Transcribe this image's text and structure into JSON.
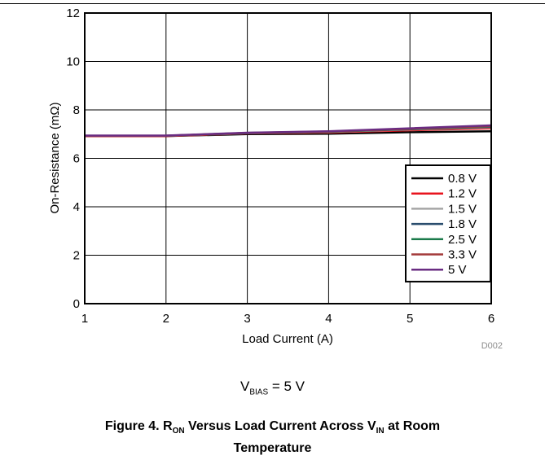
{
  "chart_data": {
    "type": "line",
    "title": "",
    "xlabel": "Load Current (A)",
    "ylabel": "On-Resistance (mΩ)",
    "xlim": [
      1,
      6
    ],
    "ylim": [
      0,
      12
    ],
    "x_ticks": [
      "1",
      "2",
      "3",
      "4",
      "5",
      "6"
    ],
    "y_ticks": [
      "0",
      "2",
      "4",
      "6",
      "8",
      "10",
      "12"
    ],
    "grid": true,
    "legend_position": "bottom-right",
    "x": [
      1,
      2,
      3,
      4,
      5,
      6
    ],
    "series": [
      {
        "name": "0.8 V",
        "color": "#000000",
        "values": [
          6.92,
          6.92,
          7.0,
          7.02,
          7.08,
          7.12
        ]
      },
      {
        "name": "1.2 V",
        "color": "#e8141e",
        "values": [
          6.92,
          6.92,
          7.03,
          7.07,
          7.16,
          7.24
        ]
      },
      {
        "name": "1.5 V",
        "color": "#a6a6a6",
        "values": [
          6.93,
          6.93,
          7.04,
          7.09,
          7.19,
          7.28
        ]
      },
      {
        "name": "1.8 V",
        "color": "#2a4d6e",
        "values": [
          6.93,
          6.93,
          7.04,
          7.1,
          7.2,
          7.3
        ]
      },
      {
        "name": "2.5 V",
        "color": "#1a7a4a",
        "values": [
          6.93,
          6.93,
          7.05,
          7.1,
          7.21,
          7.32
        ]
      },
      {
        "name": "3.3 V",
        "color": "#a33a3a",
        "values": [
          6.93,
          6.93,
          7.05,
          7.11,
          7.22,
          7.33
        ]
      },
      {
        "name": "5 V",
        "color": "#6a2c82",
        "values": [
          6.94,
          6.94,
          7.06,
          7.12,
          7.24,
          7.36
        ]
      }
    ]
  },
  "figure_id": "D002",
  "condition": {
    "symbol": "V",
    "subscript": "BIAS",
    "rest": " = 5 V"
  },
  "caption": {
    "prefix": "Figure 4. R",
    "sub1": "ON",
    "middle": " Versus Load Current Across V",
    "sub2": "IN",
    "suffix": " at Room",
    "line2": "Temperature"
  }
}
